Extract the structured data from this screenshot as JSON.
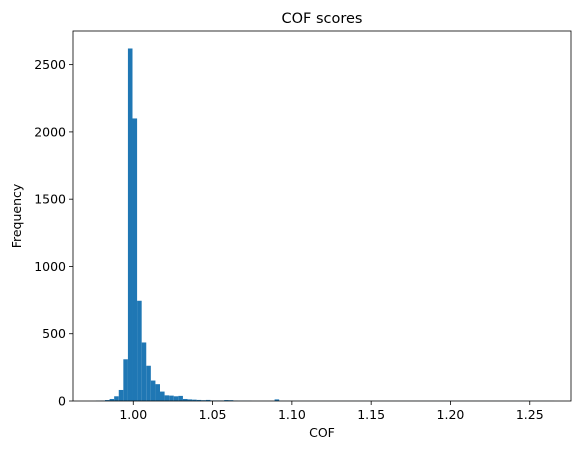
{
  "chart_data": {
    "type": "bar",
    "title": "COF scores",
    "xlabel": "COF",
    "ylabel": "Frequency",
    "xlim": [
      0.962,
      1.276
    ],
    "ylim": [
      0,
      2750
    ],
    "x_ticks": [
      1.0,
      1.05,
      1.1,
      1.15,
      1.2,
      1.25
    ],
    "x_tick_labels": [
      "1.00",
      "1.05",
      "1.10",
      "1.15",
      "1.20",
      "1.25"
    ],
    "y_ticks": [
      0,
      500,
      1000,
      1500,
      2000,
      2500
    ],
    "y_tick_labels": [
      "0",
      "500",
      "1000",
      "1500",
      "2000",
      "2500"
    ],
    "bar_color": "#1f77b4",
    "bins": {
      "start": 0.9764,
      "width": 0.00289,
      "values": [
        2,
        3,
        7,
        15,
        35,
        82,
        310,
        2620,
        2100,
        745,
        435,
        262,
        152,
        125,
        70,
        42,
        40,
        35,
        38,
        15,
        12,
        10,
        8,
        6,
        8,
        4,
        4,
        4,
        7,
        6,
        3,
        2,
        2,
        2,
        1,
        1,
        1,
        1,
        1,
        12,
        1,
        1,
        1,
        1,
        1,
        1,
        1,
        1,
        1,
        1,
        1,
        1,
        1,
        1,
        1,
        1,
        1,
        1,
        1,
        1,
        1,
        1,
        1,
        1,
        1,
        1,
        1,
        1,
        1,
        1,
        1,
        1,
        1,
        1,
        1,
        1,
        1,
        1,
        1,
        1,
        1,
        1,
        1,
        1,
        1,
        1,
        1,
        1,
        1,
        1,
        1,
        1,
        1,
        1,
        1,
        1,
        1,
        1,
        1,
        1
      ]
    }
  }
}
